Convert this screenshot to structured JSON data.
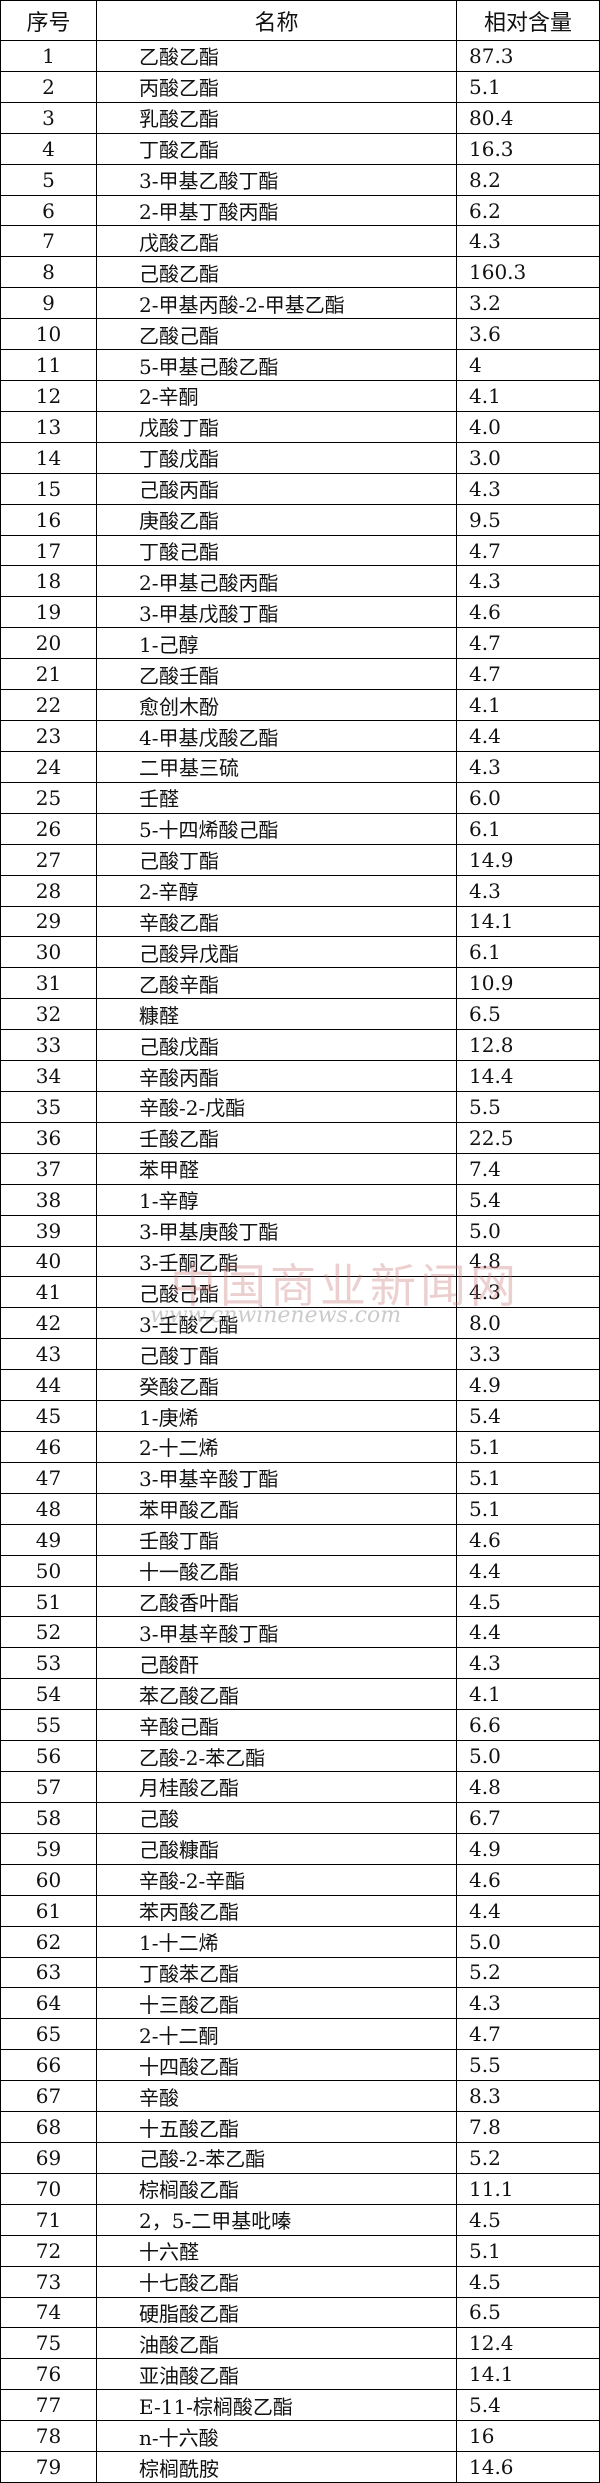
{
  "table": {
    "header": [
      "序号",
      "名称",
      "相对含量"
    ],
    "rows": [
      [
        "1",
        "乙酸乙酯",
        "87.3"
      ],
      [
        "2",
        "丙酸乙酯",
        "5.1"
      ],
      [
        "3",
        "乳酸乙酯",
        "80.4"
      ],
      [
        "4",
        "丁酸乙酯",
        "16.3"
      ],
      [
        "5",
        "3-甲基乙酸丁酯",
        "8.2"
      ],
      [
        "6",
        "2-甲基丁酸丙酯",
        "6.2"
      ],
      [
        "7",
        "戊酸乙酯",
        "4.3"
      ],
      [
        "8",
        "己酸乙酯",
        "160.3"
      ],
      [
        "9",
        "2-甲基丙酸-2-甲基乙酯",
        "3.2"
      ],
      [
        "10",
        "乙酸己酯",
        "3.6"
      ],
      [
        "11",
        "5-甲基己酸乙酯",
        "4"
      ],
      [
        "12",
        "2-辛酮",
        "4.1"
      ],
      [
        "13",
        "戊酸丁酯",
        "4.0"
      ],
      [
        "14",
        "丁酸戊酯",
        "3.0"
      ],
      [
        "15",
        "己酸丙酯",
        "4.3"
      ],
      [
        "16",
        "庚酸乙酯",
        "9.5"
      ],
      [
        "17",
        "丁酸己酯",
        "4.7"
      ],
      [
        "18",
        "2-甲基己酸丙酯",
        "4.3"
      ],
      [
        "19",
        "3-甲基戊酸丁酯",
        "4.6"
      ],
      [
        "20",
        "1-己醇",
        "4.7"
      ],
      [
        "21",
        "乙酸壬酯",
        "4.7"
      ],
      [
        "22",
        "愈创木酚",
        "4.1"
      ],
      [
        "23",
        "4-甲基戊酸乙酯",
        "4.4"
      ],
      [
        "24",
        "二甲基三硫",
        "4.3"
      ],
      [
        "25",
        "壬醛",
        "6.0"
      ],
      [
        "26",
        "5-十四烯酸己酯",
        "6.1"
      ],
      [
        "27",
        "己酸丁酯",
        "14.9"
      ],
      [
        "28",
        "2-辛醇",
        "4.3"
      ],
      [
        "29",
        "辛酸乙酯",
        "14.1"
      ],
      [
        "30",
        "己酸异戊酯",
        "6.1"
      ],
      [
        "31",
        "乙酸辛酯",
        "10.9"
      ],
      [
        "32",
        "糠醛",
        "6.5"
      ],
      [
        "33",
        "己酸戊酯",
        "12.8"
      ],
      [
        "34",
        "辛酸丙酯",
        "14.4"
      ],
      [
        "35",
        "辛酸-2-戊酯",
        "5.5"
      ],
      [
        "36",
        "壬酸乙酯",
        "22.5"
      ],
      [
        "37",
        "苯甲醛",
        "7.4"
      ],
      [
        "38",
        "1-辛醇",
        "5.4"
      ],
      [
        "39",
        "3-甲基庚酸丁酯",
        "5.0"
      ],
      [
        "40",
        "3-壬酮乙酯",
        "4.8"
      ],
      [
        "41",
        "己酸己酯",
        "4.3"
      ],
      [
        "42",
        "3-壬酸乙酯",
        "8.0"
      ],
      [
        "43",
        "己酸丁酯",
        "3.3"
      ],
      [
        "44",
        "癸酸乙酯",
        "4.9"
      ],
      [
        "45",
        "1-庚烯",
        "5.4"
      ],
      [
        "46",
        "2-十二烯",
        "5.1"
      ],
      [
        "47",
        "3-甲基辛酸丁酯",
        "5.1"
      ],
      [
        "48",
        "苯甲酸乙酯",
        "5.1"
      ],
      [
        "49",
        "壬酸丁酯",
        "4.6"
      ],
      [
        "50",
        "十一酸乙酯",
        "4.4"
      ],
      [
        "51",
        "乙酸香叶酯",
        "4.5"
      ],
      [
        "52",
        "3-甲基辛酸丁酯",
        "4.4"
      ],
      [
        "53",
        "己酸酐",
        "4.3"
      ],
      [
        "54",
        "苯乙酸乙酯",
        "4.1"
      ],
      [
        "55",
        "辛酸己酯",
        "6.6"
      ],
      [
        "56",
        "乙酸-2-苯乙酯",
        "5.0"
      ],
      [
        "57",
        "月桂酸乙酯",
        "4.8"
      ],
      [
        "58",
        "己酸",
        "6.7"
      ],
      [
        "59",
        "己酸糠酯",
        "4.9"
      ],
      [
        "60",
        "辛酸-2-辛酯",
        "4.6"
      ],
      [
        "61",
        "苯丙酸乙酯",
        "4.4"
      ],
      [
        "62",
        "1-十二烯",
        "5.0"
      ],
      [
        "63",
        "丁酸苯乙酯",
        "5.2"
      ],
      [
        "64",
        "十三酸乙酯",
        "4.3"
      ],
      [
        "65",
        "2-十二酮",
        "4.7"
      ],
      [
        "66",
        "十四酸乙酯",
        "5.5"
      ],
      [
        "67",
        "辛酸",
        "8.3"
      ],
      [
        "68",
        "十五酸乙酯",
        "7.8"
      ],
      [
        "69",
        "己酸-2-苯乙酯",
        "5.2"
      ],
      [
        "70",
        "棕榈酸乙酯",
        "11.1"
      ],
      [
        "71",
        "2，5-二甲基吡嗪",
        "4.5"
      ],
      [
        "72",
        "十六醛",
        "5.1"
      ],
      [
        "73",
        "十七酸乙酯",
        "4.5"
      ],
      [
        "74",
        "硬脂酸乙酯",
        "6.5"
      ],
      [
        "75",
        "油酸乙酯",
        "12.4"
      ],
      [
        "76",
        "亚油酸乙酯",
        "14.1"
      ],
      [
        "77",
        "E-11-棕榈酸乙酯",
        "5.4"
      ],
      [
        "78",
        "n-十六酸",
        "16"
      ],
      [
        "79",
        "棕榈酰胺",
        "14.6"
      ]
    ]
  },
  "watermark": {
    "text": "中国商业新闻网",
    "url": "www.cnwinenews.com"
  }
}
